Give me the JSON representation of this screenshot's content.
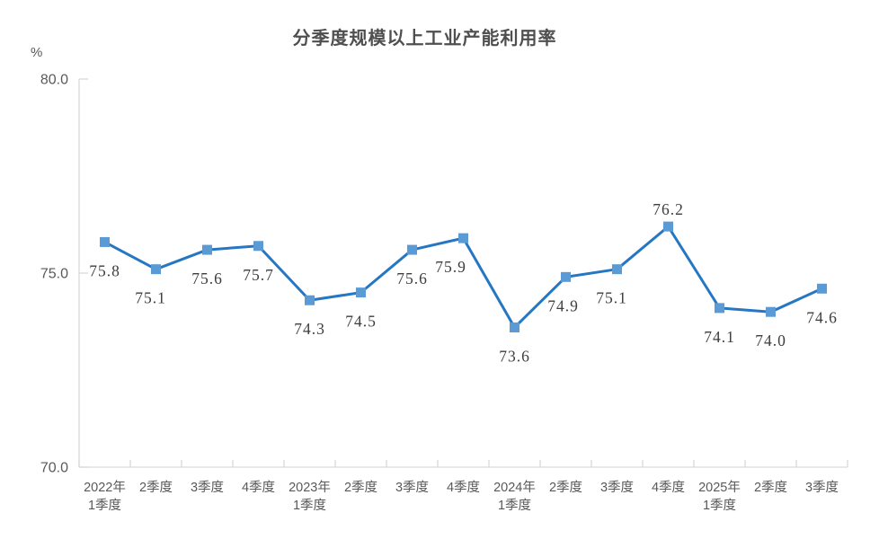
{
  "chart_data": {
    "type": "line",
    "title": "分季度规模以上工业产能利用率",
    "unit_label": "%",
    "categories": [
      [
        "2022年",
        "1季度"
      ],
      [
        "2季度"
      ],
      [
        "3季度"
      ],
      [
        "4季度"
      ],
      [
        "2023年",
        "1季度"
      ],
      [
        "2季度"
      ],
      [
        "3季度"
      ],
      [
        "4季度"
      ],
      [
        "2024年",
        "1季度"
      ],
      [
        "2季度"
      ],
      [
        "3季度"
      ],
      [
        "4季度"
      ],
      [
        "2025年",
        "1季度"
      ],
      [
        "2季度"
      ],
      [
        "3季度"
      ]
    ],
    "values": [
      75.8,
      75.1,
      75.6,
      75.7,
      74.3,
      74.5,
      75.6,
      75.9,
      73.6,
      74.9,
      75.1,
      76.2,
      74.1,
      74.0,
      74.6
    ],
    "point_labels": [
      "75.8",
      "75.1",
      "75.6",
      "75.7",
      "74.3",
      "74.5",
      "75.6",
      "75.9",
      "73.6",
      "74.9",
      "75.1",
      "76.2",
      "74.1",
      "74.0",
      "74.6"
    ],
    "label_position": [
      "below",
      "below",
      "below",
      "below",
      "below",
      "below",
      "below",
      "below",
      "below",
      "below",
      "below",
      "above",
      "below",
      "below",
      "below"
    ],
    "ylim": [
      70,
      80
    ],
    "yticks": [
      {
        "value": 80,
        "label": "80.0"
      },
      {
        "value": 75,
        "label": "75.0"
      },
      {
        "value": 70,
        "label": "70.0"
      }
    ],
    "grid": "off",
    "legend": "none",
    "xlabel": "",
    "ylabel": "%",
    "colors": {
      "line": "#2577C3",
      "marker": "#5B9BD5",
      "axis": "#D9D9D9",
      "axis_text": "#595959",
      "data_label_text": "#3d3d3d",
      "title_text": "#4f4f4f"
    }
  }
}
